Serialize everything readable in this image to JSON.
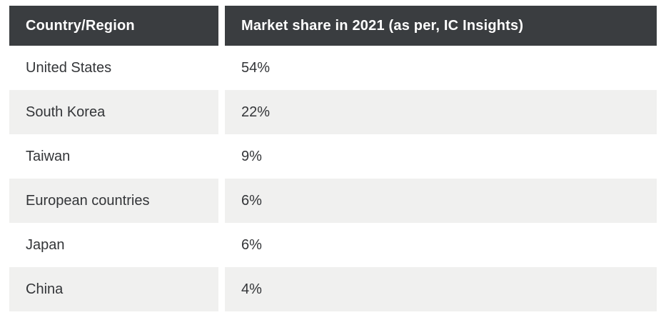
{
  "table": {
    "headers": [
      "Country/Region",
      "Market share in 2021 (as per, IC Insights)"
    ],
    "rows": [
      {
        "country": "United States",
        "share": "54%"
      },
      {
        "country": "South Korea",
        "share": "22%"
      },
      {
        "country": "Taiwan",
        "share": "9%"
      },
      {
        "country": "European countries",
        "share": "6%"
      },
      {
        "country": "Japan",
        "share": "6%"
      },
      {
        "country": "China",
        "share": "4%"
      }
    ]
  },
  "colors": {
    "header_background": "#3a3d40",
    "header_text": "#ffffff",
    "stripe_background": "#f0f0ef",
    "row_background": "#ffffff",
    "body_text": "#333538"
  },
  "chart_data": {
    "type": "table",
    "title": "Market share in 2021 (as per, IC Insights)",
    "columns": [
      "Country/Region",
      "Market share in 2021 (as per, IC Insights)"
    ],
    "categories": [
      "United States",
      "South Korea",
      "Taiwan",
      "European countries",
      "Japan",
      "China"
    ],
    "values": [
      54,
      22,
      9,
      6,
      6,
      4
    ],
    "unit": "%"
  }
}
